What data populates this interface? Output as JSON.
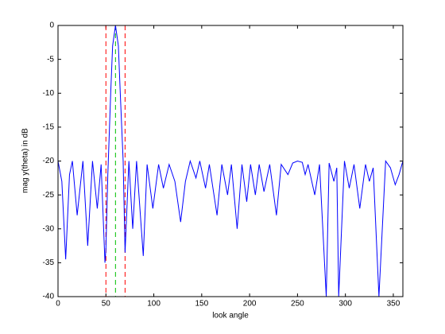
{
  "chart_data": {
    "type": "line",
    "xlabel": "look angle",
    "ylabel": "mag y(theta) in dB",
    "xlim": [
      0,
      360
    ],
    "ylim": [
      -40,
      0
    ],
    "xticks": [
      0,
      50,
      100,
      150,
      200,
      250,
      300,
      350
    ],
    "yticks": [
      0,
      -5,
      -10,
      -15,
      -20,
      -25,
      -30,
      -35,
      -40
    ],
    "x": [
      0,
      4,
      8,
      12,
      15,
      20,
      26,
      31,
      36,
      41,
      45,
      49,
      50,
      52,
      55,
      57,
      60,
      63,
      65,
      68,
      70,
      74,
      78,
      82,
      89,
      93,
      99,
      105,
      110,
      116,
      122,
      128,
      133,
      138,
      144,
      148,
      154,
      158,
      166,
      171,
      177,
      181,
      187,
      192,
      197,
      201,
      206,
      210,
      215,
      221,
      228,
      233,
      240,
      245,
      250,
      255,
      258,
      261,
      268,
      273,
      280,
      283,
      288,
      291,
      293,
      299,
      304,
      309,
      315,
      321,
      325,
      329,
      335,
      342,
      347,
      352,
      356,
      360
    ],
    "series": [
      {
        "color": "#0000ff",
        "values": [
          -20,
          -23,
          -34.5,
          -22,
          -20,
          -28,
          -20,
          -32.5,
          -20,
          -27,
          -20.5,
          -35,
          -33,
          -22,
          -10,
          -3,
          0,
          -3,
          -10,
          -20,
          -33.5,
          -20,
          -30,
          -20,
          -34,
          -20.5,
          -27,
          -20.5,
          -24,
          -20.5,
          -23,
          -29,
          -23,
          -20,
          -22.5,
          -20,
          -24,
          -20.5,
          -28,
          -20.5,
          -25,
          -20.5,
          -30,
          -20.5,
          -26,
          -20.5,
          -25,
          -20.5,
          -24.5,
          -20.5,
          -28,
          -20.5,
          -22,
          -20.3,
          -20,
          -20.2,
          -22,
          -20.5,
          -25,
          -20.5,
          -40,
          -20.3,
          -23,
          -21,
          -40,
          -20,
          -24,
          -20.5,
          -27,
          -20.5,
          -23,
          -21,
          -40,
          -20,
          -21,
          -23.5,
          -22,
          -20
        ]
      }
    ],
    "vlines": [
      {
        "x": 50,
        "color": "#ff0000"
      },
      {
        "x": 60,
        "color": "#00c000"
      },
      {
        "x": 70,
        "color": "#ff0000"
      }
    ]
  }
}
